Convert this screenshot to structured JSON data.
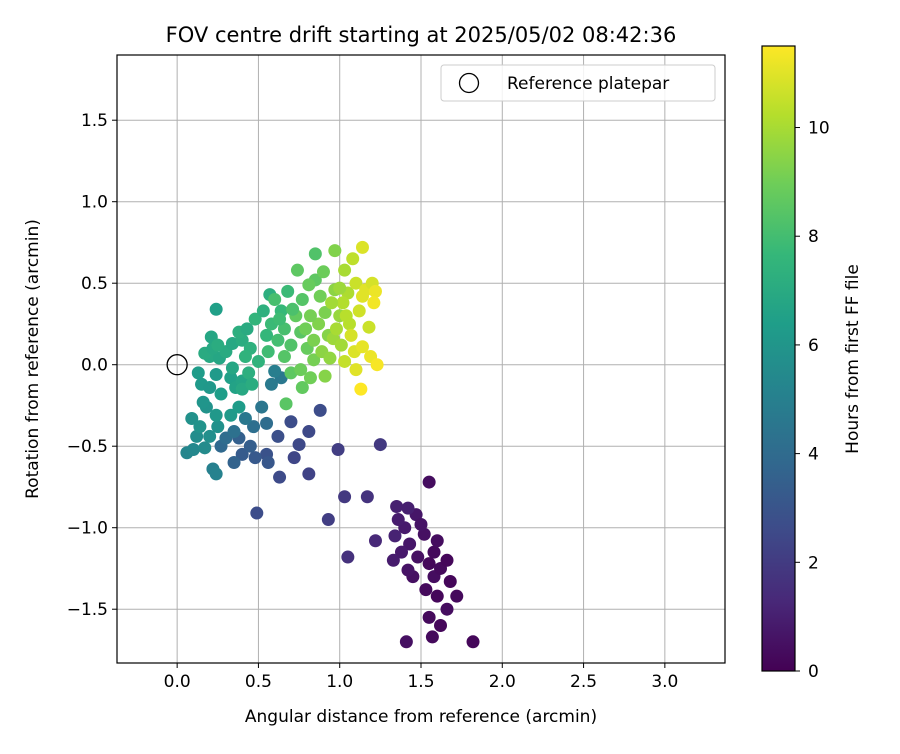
{
  "chart_data": {
    "type": "scatter",
    "title": "FOV centre drift starting at 2025/05/02 08:42:36",
    "xlabel": "Angular distance from reference (arcmin)",
    "ylabel": "Rotation from reference (arcmin)",
    "xlim": [
      -0.37,
      3.37
    ],
    "ylim": [
      -1.83,
      1.9
    ],
    "xticks": [
      0.0,
      0.5,
      1.0,
      1.5,
      2.0,
      2.5,
      3.0
    ],
    "xtick_labels": [
      "0.0",
      "0.5",
      "1.0",
      "1.5",
      "2.0",
      "2.5",
      "3.0"
    ],
    "yticks": [
      -1.5,
      -1.0,
      -0.5,
      0.0,
      0.5,
      1.0,
      1.5
    ],
    "ytick_labels": [
      "−1.5",
      "−1.0",
      "−0.5",
      "0.0",
      "0.5",
      "1.0",
      "1.5"
    ],
    "grid": true,
    "legend": {
      "placement": "upper right",
      "entries": [
        "Reference platepar"
      ]
    },
    "reference_point": {
      "x": 0.0,
      "y": 0.0
    },
    "colorbar": {
      "label": "Hours from first FF file",
      "colormap": "viridis",
      "range": [
        0,
        11.5
      ],
      "ticks": [
        0,
        2,
        4,
        6,
        8,
        10
      ],
      "tick_labels": [
        "0",
        "2",
        "4",
        "6",
        "8",
        "10"
      ]
    },
    "points": [
      {
        "x": 1.55,
        "y": -0.72,
        "t": 0.4
      },
      {
        "x": 1.82,
        "y": -1.7,
        "t": 0.2
      },
      {
        "x": 1.41,
        "y": -1.7,
        "t": 0.5
      },
      {
        "x": 1.57,
        "y": -1.67,
        "t": 0.3
      },
      {
        "x": 1.62,
        "y": -1.6,
        "t": 0.2
      },
      {
        "x": 1.55,
        "y": -1.55,
        "t": 0.3
      },
      {
        "x": 1.66,
        "y": -1.5,
        "t": 0.4
      },
      {
        "x": 1.72,
        "y": -1.42,
        "t": 0.3
      },
      {
        "x": 1.6,
        "y": -1.42,
        "t": 0.2
      },
      {
        "x": 1.53,
        "y": -1.38,
        "t": 0.3
      },
      {
        "x": 1.68,
        "y": -1.33,
        "t": 0.2
      },
      {
        "x": 1.58,
        "y": -1.3,
        "t": 0.4
      },
      {
        "x": 1.45,
        "y": -1.3,
        "t": 0.5
      },
      {
        "x": 1.62,
        "y": -1.25,
        "t": 0.3
      },
      {
        "x": 1.55,
        "y": -1.22,
        "t": 0.2
      },
      {
        "x": 1.66,
        "y": -1.2,
        "t": 0.2
      },
      {
        "x": 1.42,
        "y": -1.26,
        "t": 0.6
      },
      {
        "x": 1.58,
        "y": -1.15,
        "t": 0.3
      },
      {
        "x": 1.48,
        "y": -1.18,
        "t": 0.5
      },
      {
        "x": 1.6,
        "y": -1.08,
        "t": 0.4
      },
      {
        "x": 1.52,
        "y": -1.04,
        "t": 0.5
      },
      {
        "x": 1.43,
        "y": -1.1,
        "t": 0.7
      },
      {
        "x": 1.38,
        "y": -1.15,
        "t": 0.8
      },
      {
        "x": 1.33,
        "y": -1.2,
        "t": 0.9
      },
      {
        "x": 1.4,
        "y": -1.0,
        "t": 0.8
      },
      {
        "x": 1.36,
        "y": -0.95,
        "t": 0.9
      },
      {
        "x": 1.34,
        "y": -1.05,
        "t": 1.1
      },
      {
        "x": 1.47,
        "y": -0.92,
        "t": 0.7
      },
      {
        "x": 1.5,
        "y": -0.98,
        "t": 0.6
      },
      {
        "x": 1.35,
        "y": -0.87,
        "t": 1.0
      },
      {
        "x": 1.42,
        "y": -0.88,
        "t": 1.0
      },
      {
        "x": 1.22,
        "y": -1.08,
        "t": 1.3
      },
      {
        "x": 1.05,
        "y": -1.18,
        "t": 1.6
      },
      {
        "x": 1.17,
        "y": -0.81,
        "t": 1.7
      },
      {
        "x": 1.03,
        "y": -0.81,
        "t": 1.9
      },
      {
        "x": 0.93,
        "y": -0.95,
        "t": 2.1
      },
      {
        "x": 1.25,
        "y": -0.49,
        "t": 1.9
      },
      {
        "x": 0.99,
        "y": -0.52,
        "t": 2.1
      },
      {
        "x": 0.81,
        "y": -0.67,
        "t": 2.3
      },
      {
        "x": 0.72,
        "y": -0.57,
        "t": 2.4
      },
      {
        "x": 0.75,
        "y": -0.49,
        "t": 2.5
      },
      {
        "x": 0.81,
        "y": -0.41,
        "t": 2.5
      },
      {
        "x": 0.88,
        "y": -0.28,
        "t": 2.7
      },
      {
        "x": 0.7,
        "y": -0.35,
        "t": 2.7
      },
      {
        "x": 0.62,
        "y": -0.44,
        "t": 2.8
      },
      {
        "x": 0.55,
        "y": -0.55,
        "t": 2.9
      },
      {
        "x": 0.63,
        "y": -0.69,
        "t": 2.6
      },
      {
        "x": 0.49,
        "y": -0.91,
        "t": 2.7
      },
      {
        "x": 0.56,
        "y": -0.6,
        "t": 3.1
      },
      {
        "x": 0.48,
        "y": -0.57,
        "t": 3.2
      },
      {
        "x": 0.4,
        "y": -0.55,
        "t": 3.3
      },
      {
        "x": 0.45,
        "y": -0.5,
        "t": 3.4
      },
      {
        "x": 0.38,
        "y": -0.45,
        "t": 3.5
      },
      {
        "x": 0.35,
        "y": -0.6,
        "t": 3.6
      },
      {
        "x": 0.27,
        "y": -0.5,
        "t": 3.9
      },
      {
        "x": 0.3,
        "y": -0.45,
        "t": 4.1
      },
      {
        "x": 0.35,
        "y": -0.41,
        "t": 4.3
      },
      {
        "x": 0.47,
        "y": -0.38,
        "t": 4.2
      },
      {
        "x": 0.55,
        "y": -0.36,
        "t": 4.1
      },
      {
        "x": 0.42,
        "y": -0.33,
        "t": 4.6
      },
      {
        "x": 0.52,
        "y": -0.26,
        "t": 4.5
      },
      {
        "x": 0.58,
        "y": -0.12,
        "t": 4.7
      },
      {
        "x": 0.64,
        "y": -0.08,
        "t": 4.6
      },
      {
        "x": 0.6,
        "y": -0.04,
        "t": 4.9
      },
      {
        "x": 0.22,
        "y": -0.64,
        "t": 5.0
      },
      {
        "x": 0.24,
        "y": -0.67,
        "t": 5.1
      },
      {
        "x": 0.06,
        "y": -0.54,
        "t": 5.3
      },
      {
        "x": 0.1,
        "y": -0.52,
        "t": 5.4
      },
      {
        "x": 0.17,
        "y": -0.51,
        "t": 5.5
      },
      {
        "x": 0.12,
        "y": -0.44,
        "t": 5.6
      },
      {
        "x": 0.2,
        "y": -0.44,
        "t": 5.7
      },
      {
        "x": 0.09,
        "y": -0.33,
        "t": 5.8
      },
      {
        "x": 0.14,
        "y": -0.38,
        "t": 5.9
      },
      {
        "x": 0.25,
        "y": -0.38,
        "t": 5.8
      },
      {
        "x": 0.18,
        "y": -0.26,
        "t": 5.9
      },
      {
        "x": 0.16,
        "y": -0.23,
        "t": 6.0
      },
      {
        "x": 0.24,
        "y": -0.31,
        "t": 6.1
      },
      {
        "x": 0.33,
        "y": -0.31,
        "t": 6.2
      },
      {
        "x": 0.38,
        "y": -0.26,
        "t": 6.3
      },
      {
        "x": 0.15,
        "y": -0.12,
        "t": 6.2
      },
      {
        "x": 0.2,
        "y": -0.14,
        "t": 6.1
      },
      {
        "x": 0.13,
        "y": -0.05,
        "t": 6.3
      },
      {
        "x": 0.24,
        "y": -0.06,
        "t": 6.2
      },
      {
        "x": 0.27,
        "y": -0.18,
        "t": 6.4
      },
      {
        "x": 0.33,
        "y": -0.08,
        "t": 6.5
      },
      {
        "x": 0.36,
        "y": -0.14,
        "t": 6.6
      },
      {
        "x": 0.4,
        "y": -0.1,
        "t": 6.7
      },
      {
        "x": 0.34,
        "y": -0.02,
        "t": 6.8
      },
      {
        "x": 0.2,
        "y": 0.05,
        "t": 6.9
      },
      {
        "x": 0.17,
        "y": 0.07,
        "t": 7.0
      },
      {
        "x": 0.26,
        "y": 0.04,
        "t": 6.8
      },
      {
        "x": 0.22,
        "y": 0.1,
        "t": 6.9
      },
      {
        "x": 0.3,
        "y": 0.08,
        "t": 7.0
      },
      {
        "x": 0.21,
        "y": 0.17,
        "t": 6.8
      },
      {
        "x": 0.25,
        "y": 0.12,
        "t": 7.1
      },
      {
        "x": 0.24,
        "y": 0.34,
        "t": 6.5
      },
      {
        "x": 0.34,
        "y": 0.13,
        "t": 6.9
      },
      {
        "x": 0.4,
        "y": 0.15,
        "t": 7.1
      },
      {
        "x": 0.38,
        "y": 0.2,
        "t": 7.2
      },
      {
        "x": 0.43,
        "y": 0.22,
        "t": 7.0
      },
      {
        "x": 0.45,
        "y": 0.1,
        "t": 7.3
      },
      {
        "x": 0.42,
        "y": 0.05,
        "t": 7.4
      },
      {
        "x": 0.44,
        "y": -0.05,
        "t": 7.2
      },
      {
        "x": 0.4,
        "y": -0.15,
        "t": 6.9
      },
      {
        "x": 0.46,
        "y": -0.12,
        "t": 7.1
      },
      {
        "x": 0.5,
        "y": 0.02,
        "t": 7.4
      },
      {
        "x": 0.48,
        "y": 0.28,
        "t": 7.5
      },
      {
        "x": 0.55,
        "y": 0.18,
        "t": 7.6
      },
      {
        "x": 0.53,
        "y": 0.33,
        "t": 7.3
      },
      {
        "x": 0.57,
        "y": 0.43,
        "t": 7.2
      },
      {
        "x": 0.58,
        "y": 0.25,
        "t": 7.8
      },
      {
        "x": 0.62,
        "y": 0.15,
        "t": 8.0
      },
      {
        "x": 0.56,
        "y": 0.08,
        "t": 7.9
      },
      {
        "x": 0.64,
        "y": 0.33,
        "t": 7.7
      },
      {
        "x": 0.68,
        "y": 0.45,
        "t": 7.8
      },
      {
        "x": 0.66,
        "y": 0.22,
        "t": 8.1
      },
      {
        "x": 0.7,
        "y": 0.12,
        "t": 8.3
      },
      {
        "x": 0.66,
        "y": 0.05,
        "t": 8.4
      },
      {
        "x": 0.7,
        "y": -0.05,
        "t": 8.6
      },
      {
        "x": 0.67,
        "y": -0.24,
        "t": 8.5
      },
      {
        "x": 0.74,
        "y": 0.58,
        "t": 8.6
      },
      {
        "x": 0.77,
        "y": 0.4,
        "t": 8.4
      },
      {
        "x": 0.73,
        "y": 0.3,
        "t": 8.7
      },
      {
        "x": 0.76,
        "y": 0.2,
        "t": 8.5
      },
      {
        "x": 0.8,
        "y": 0.1,
        "t": 8.8
      },
      {
        "x": 0.76,
        "y": -0.03,
        "t": 8.9
      },
      {
        "x": 0.77,
        "y": -0.14,
        "t": 8.7
      },
      {
        "x": 0.82,
        "y": -0.08,
        "t": 9.0
      },
      {
        "x": 0.84,
        "y": 0.03,
        "t": 9.1
      },
      {
        "x": 0.85,
        "y": 0.68,
        "t": 8.3
      },
      {
        "x": 0.85,
        "y": 0.52,
        "t": 8.6
      },
      {
        "x": 0.81,
        "y": 0.49,
        "t": 8.8
      },
      {
        "x": 0.88,
        "y": 0.42,
        "t": 9.0
      },
      {
        "x": 0.9,
        "y": 0.57,
        "t": 8.9
      },
      {
        "x": 0.91,
        "y": 0.32,
        "t": 9.2
      },
      {
        "x": 0.87,
        "y": 0.25,
        "t": 9.3
      },
      {
        "x": 0.93,
        "y": 0.18,
        "t": 9.4
      },
      {
        "x": 0.89,
        "y": 0.08,
        "t": 9.5
      },
      {
        "x": 0.94,
        "y": 0.04,
        "t": 9.6
      },
      {
        "x": 0.91,
        "y": -0.07,
        "t": 9.4
      },
      {
        "x": 0.97,
        "y": 0.7,
        "t": 9.3
      },
      {
        "x": 0.97,
        "y": 0.46,
        "t": 9.5
      },
      {
        "x": 1.0,
        "y": 0.3,
        "t": 9.7
      },
      {
        "x": 0.96,
        "y": 0.16,
        "t": 9.8
      },
      {
        "x": 1.01,
        "y": 0.12,
        "t": 9.9
      },
      {
        "x": 1.03,
        "y": 0.58,
        "t": 10.0
      },
      {
        "x": 1.05,
        "y": 0.44,
        "t": 10.1
      },
      {
        "x": 1.02,
        "y": 0.38,
        "t": 10.2
      },
      {
        "x": 1.06,
        "y": 0.25,
        "t": 10.3
      },
      {
        "x": 1.03,
        "y": 0.02,
        "t": 10.5
      },
      {
        "x": 1.08,
        "y": 0.65,
        "t": 10.4
      },
      {
        "x": 1.1,
        "y": 0.5,
        "t": 10.6
      },
      {
        "x": 1.12,
        "y": 0.33,
        "t": 10.7
      },
      {
        "x": 1.07,
        "y": 0.18,
        "t": 10.8
      },
      {
        "x": 1.09,
        "y": 0.08,
        "t": 10.9
      },
      {
        "x": 1.1,
        "y": -0.03,
        "t": 11.0
      },
      {
        "x": 1.14,
        "y": 0.72,
        "t": 10.9
      },
      {
        "x": 1.16,
        "y": 0.46,
        "t": 11.0
      },
      {
        "x": 1.18,
        "y": 0.23,
        "t": 10.6
      },
      {
        "x": 1.14,
        "y": 0.11,
        "t": 11.1
      },
      {
        "x": 1.2,
        "y": 0.5,
        "t": 10.8
      },
      {
        "x": 1.22,
        "y": 0.45,
        "t": 11.2
      },
      {
        "x": 1.21,
        "y": 0.38,
        "t": 11.3
      },
      {
        "x": 1.19,
        "y": 0.05,
        "t": 11.2
      },
      {
        "x": 1.23,
        "y": 0.0,
        "t": 11.4
      },
      {
        "x": 1.13,
        "y": -0.15,
        "t": 11.5
      },
      {
        "x": 1.14,
        "y": 0.42,
        "t": 11.0
      },
      {
        "x": 0.95,
        "y": 0.38,
        "t": 9.9
      },
      {
        "x": 1.0,
        "y": 0.47,
        "t": 9.8
      },
      {
        "x": 0.82,
        "y": 0.3,
        "t": 9.1
      },
      {
        "x": 0.79,
        "y": 0.22,
        "t": 9.0
      },
      {
        "x": 0.71,
        "y": 0.34,
        "t": 8.2
      },
      {
        "x": 0.63,
        "y": 0.28,
        "t": 7.9
      },
      {
        "x": 0.6,
        "y": 0.4,
        "t": 8.1
      },
      {
        "x": 0.84,
        "y": 0.15,
        "t": 9.2
      },
      {
        "x": 0.98,
        "y": 0.22,
        "t": 10.0
      },
      {
        "x": 1.04,
        "y": 0.3,
        "t": 10.3
      }
    ]
  }
}
